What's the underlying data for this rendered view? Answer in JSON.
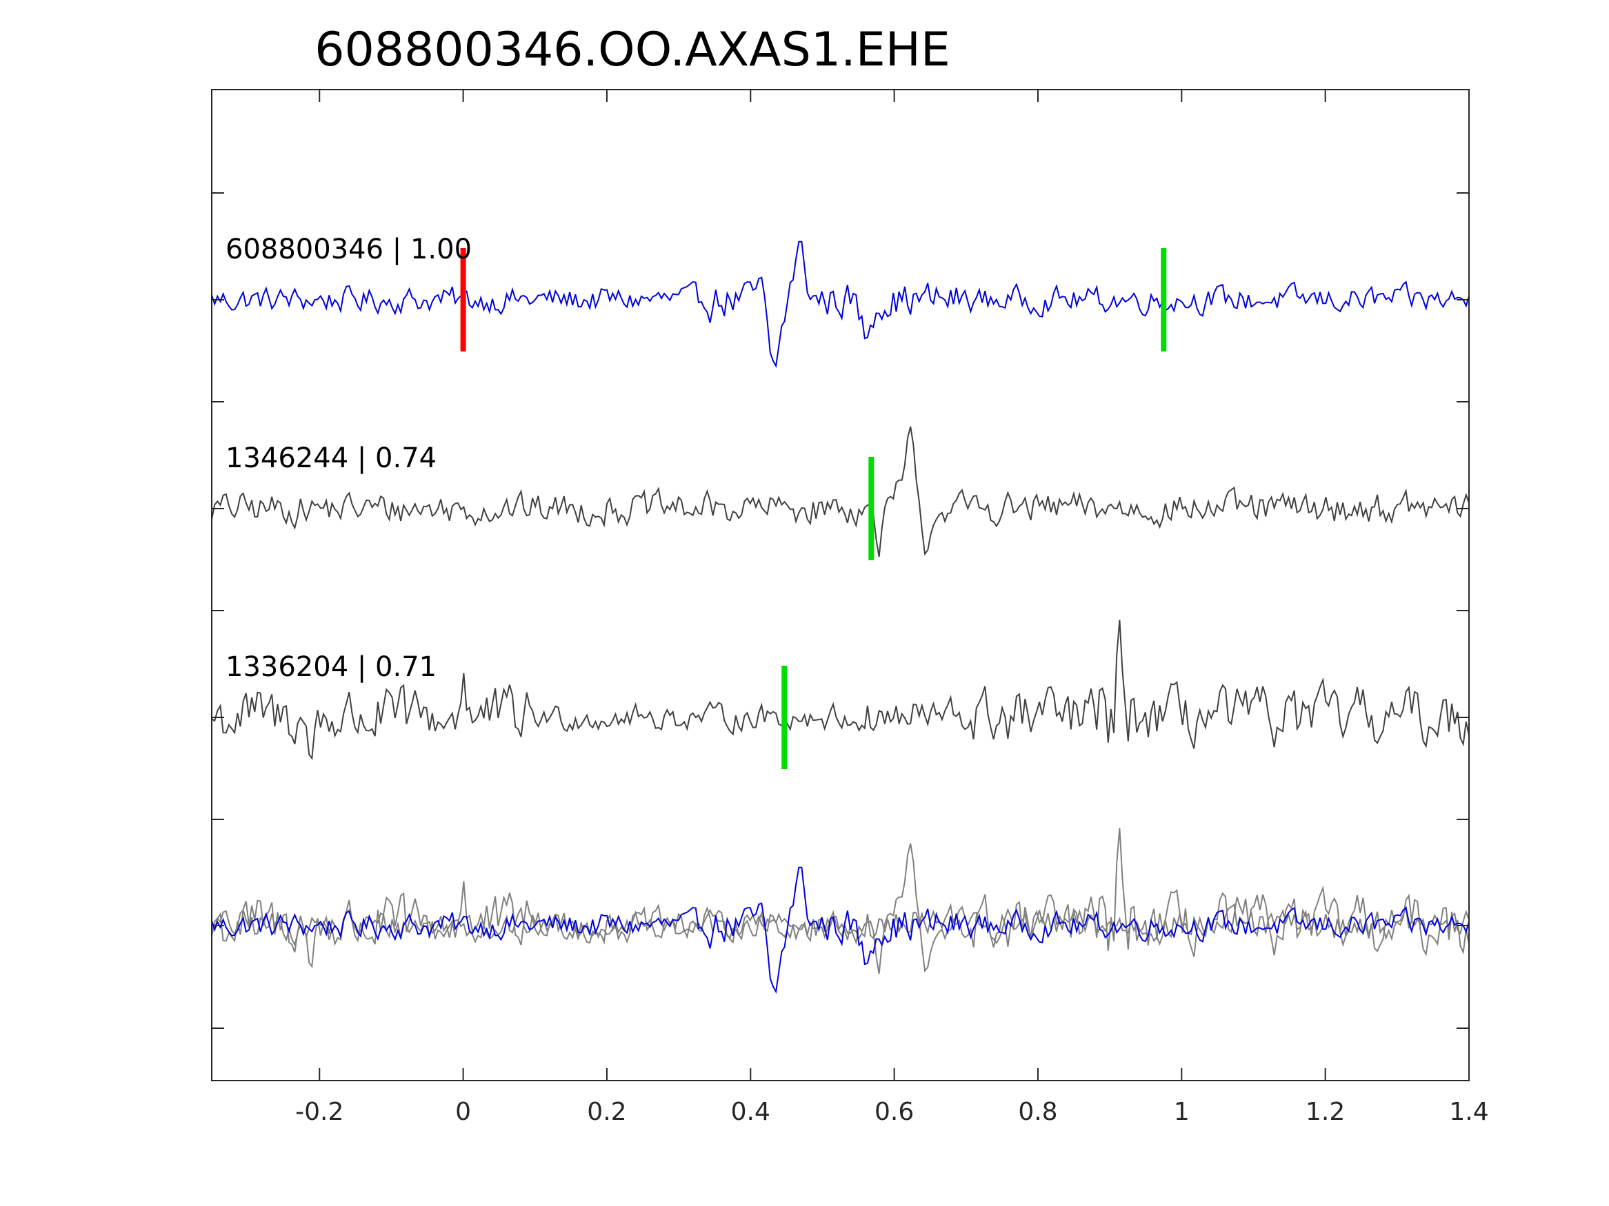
{
  "chart_data": {
    "type": "line",
    "title": "608800346.OO.AXAS1.EHE",
    "xlabel": "",
    "ylabel": "",
    "xlim": [
      -0.35,
      1.4
    ],
    "x_ticks": [
      -0.2,
      0,
      0.2,
      0.4,
      0.6,
      0.8,
      1,
      1.2,
      1.4
    ],
    "x_tick_labels": [
      "-0.2",
      "0",
      "0.2",
      "0.4",
      "0.6",
      "0.8",
      "1",
      "1.2",
      "1.4"
    ],
    "grid": false,
    "legend": "none",
    "colors": {
      "primary": "#0000dd",
      "secondary": "#404040",
      "overlay_secondary": "#808080",
      "main_pick": "#ff0000",
      "pick": "#00dd00"
    },
    "series": [
      {
        "label": "608800346 | 1.00",
        "id": "608800346",
        "correlation": 1.0,
        "pick_time": 0.0,
        "end_pick_time": 0.975,
        "dominant_event": {
          "time": 0.43,
          "min": -0.9,
          "max_time": 0.47,
          "max": 0.6
        },
        "noise_amp": 0.18
      },
      {
        "label": "1346244 | 0.74",
        "id": "1346244",
        "correlation": 0.74,
        "pick_time": 0.568,
        "dominant_event": {
          "time": 0.62,
          "max": 0.9,
          "min": -0.6
        },
        "noise_amp": 0.22
      },
      {
        "label": "1336204 | 0.71",
        "id": "1336204",
        "correlation": 0.71,
        "pick_time": 0.447,
        "dominant_event": {
          "time": 0.91,
          "max": 0.9,
          "min": -0.8
        },
        "noise_amp": 0.4
      }
    ],
    "overlay": "all traces superimposed in bottom panel"
  }
}
